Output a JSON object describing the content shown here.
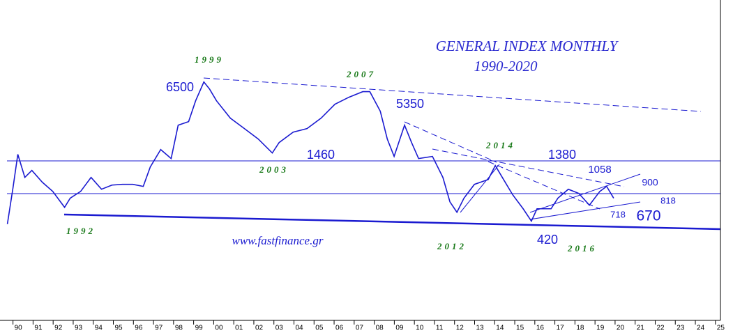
{
  "chart_data": {
    "type": "line",
    "log_scale": true,
    "xlim": [
      1989.7,
      2025.25
    ],
    "ylim": [
      63,
      32000
    ],
    "xticks": [
      {
        "value": 1990,
        "label": "90"
      },
      {
        "value": 1991,
        "label": "91"
      },
      {
        "value": 1992,
        "label": "92"
      },
      {
        "value": 1993,
        "label": "93"
      },
      {
        "value": 1994,
        "label": "94"
      },
      {
        "value": 1995,
        "label": "95"
      },
      {
        "value": 1996,
        "label": "96"
      },
      {
        "value": 1997,
        "label": "97"
      },
      {
        "value": 1998,
        "label": "98"
      },
      {
        "value": 1999,
        "label": "99"
      },
      {
        "value": 2000,
        "label": "00"
      },
      {
        "value": 2001,
        "label": "01"
      },
      {
        "value": 2002,
        "label": "02"
      },
      {
        "value": 2003,
        "label": "03"
      },
      {
        "value": 2004,
        "label": "04"
      },
      {
        "value": 2005,
        "label": "05"
      },
      {
        "value": 2006,
        "label": "06"
      },
      {
        "value": 2007,
        "label": "07"
      },
      {
        "value": 2008,
        "label": "08"
      },
      {
        "value": 2009,
        "label": "09"
      },
      {
        "value": 2010,
        "label": "10"
      },
      {
        "value": 2011,
        "label": "11"
      },
      {
        "value": 2012,
        "label": "12"
      },
      {
        "value": 2013,
        "label": "13"
      },
      {
        "value": 2014,
        "label": "14"
      },
      {
        "value": 2015,
        "label": "15"
      },
      {
        "value": 2016,
        "label": "16"
      },
      {
        "value": 2017,
        "label": "17"
      },
      {
        "value": 2018,
        "label": "18"
      },
      {
        "value": 2019,
        "label": "19"
      },
      {
        "value": 2020,
        "label": "20"
      },
      {
        "value": 2021,
        "label": "21"
      },
      {
        "value": 2022,
        "label": "22"
      },
      {
        "value": 2023,
        "label": "23"
      },
      {
        "value": 2024,
        "label": "24"
      },
      {
        "value": 2025,
        "label": "25"
      }
    ],
    "series": [
      {
        "color": "#1a1ad0",
        "x": [
          1989.72,
          1990.0,
          1990.24,
          1990.59,
          1990.94,
          1991.46,
          1991.98,
          1992.57,
          1992.85,
          1993.37,
          1993.89,
          1994.41,
          1994.93,
          1995.45,
          1995.97,
          1996.49,
          1996.84,
          1997.36,
          1997.88,
          1998.23,
          1998.75,
          1999.1,
          1999.51,
          1999.79,
          2000.14,
          2000.83,
          2001.53,
          2002.22,
          2002.92,
          2003.26,
          2003.96,
          2004.65,
          2005.35,
          2006.04,
          2006.74,
          2007.43,
          2007.78,
          2008.3,
          2008.65,
          2008.99,
          2009.51,
          2009.86,
          2010.21,
          2010.9,
          2011.42,
          2011.77,
          2012.12,
          2012.47,
          2012.99,
          2013.68,
          2014.03,
          2014.38,
          2014.9,
          2015.42,
          2015.83,
          2016.11,
          2016.81,
          2017.15,
          2017.67,
          2018.19,
          2018.72,
          2019.24,
          2019.58,
          2019.93
        ],
        "values": [
          410,
          830,
          1590,
          1016,
          1164,
          925,
          774,
          568,
          678,
          774,
          1016,
          807,
          875,
          887,
          887,
          853,
          1245,
          1746,
          1466,
          2805,
          3006,
          4508,
          6500,
          5675,
          4508,
          3214,
          2624,
          2143,
          1633,
          2000,
          2449,
          2624,
          3214,
          4217,
          4831,
          5383,
          5383,
          3681,
          2143,
          1528,
          2805,
          2000,
          1466,
          1528,
          1016,
          632,
          516,
          678,
          887,
          975,
          1279,
          1016,
          724,
          552,
          434,
          552,
          552,
          678,
          807,
          745,
          592,
          774,
          853,
          678
        ]
      }
    ],
    "annotations": [
      "GENERAL INDEX MONTHLY",
      "1990-2020",
      "1999",
      "2007",
      "2003",
      "1992",
      "2012",
      "2014",
      "2016",
      "6500",
      "5350",
      "1460",
      "1380",
      "1058",
      "900",
      "818",
      "718",
      "670",
      "420",
      "www.fastfinance.gr"
    ]
  }
}
